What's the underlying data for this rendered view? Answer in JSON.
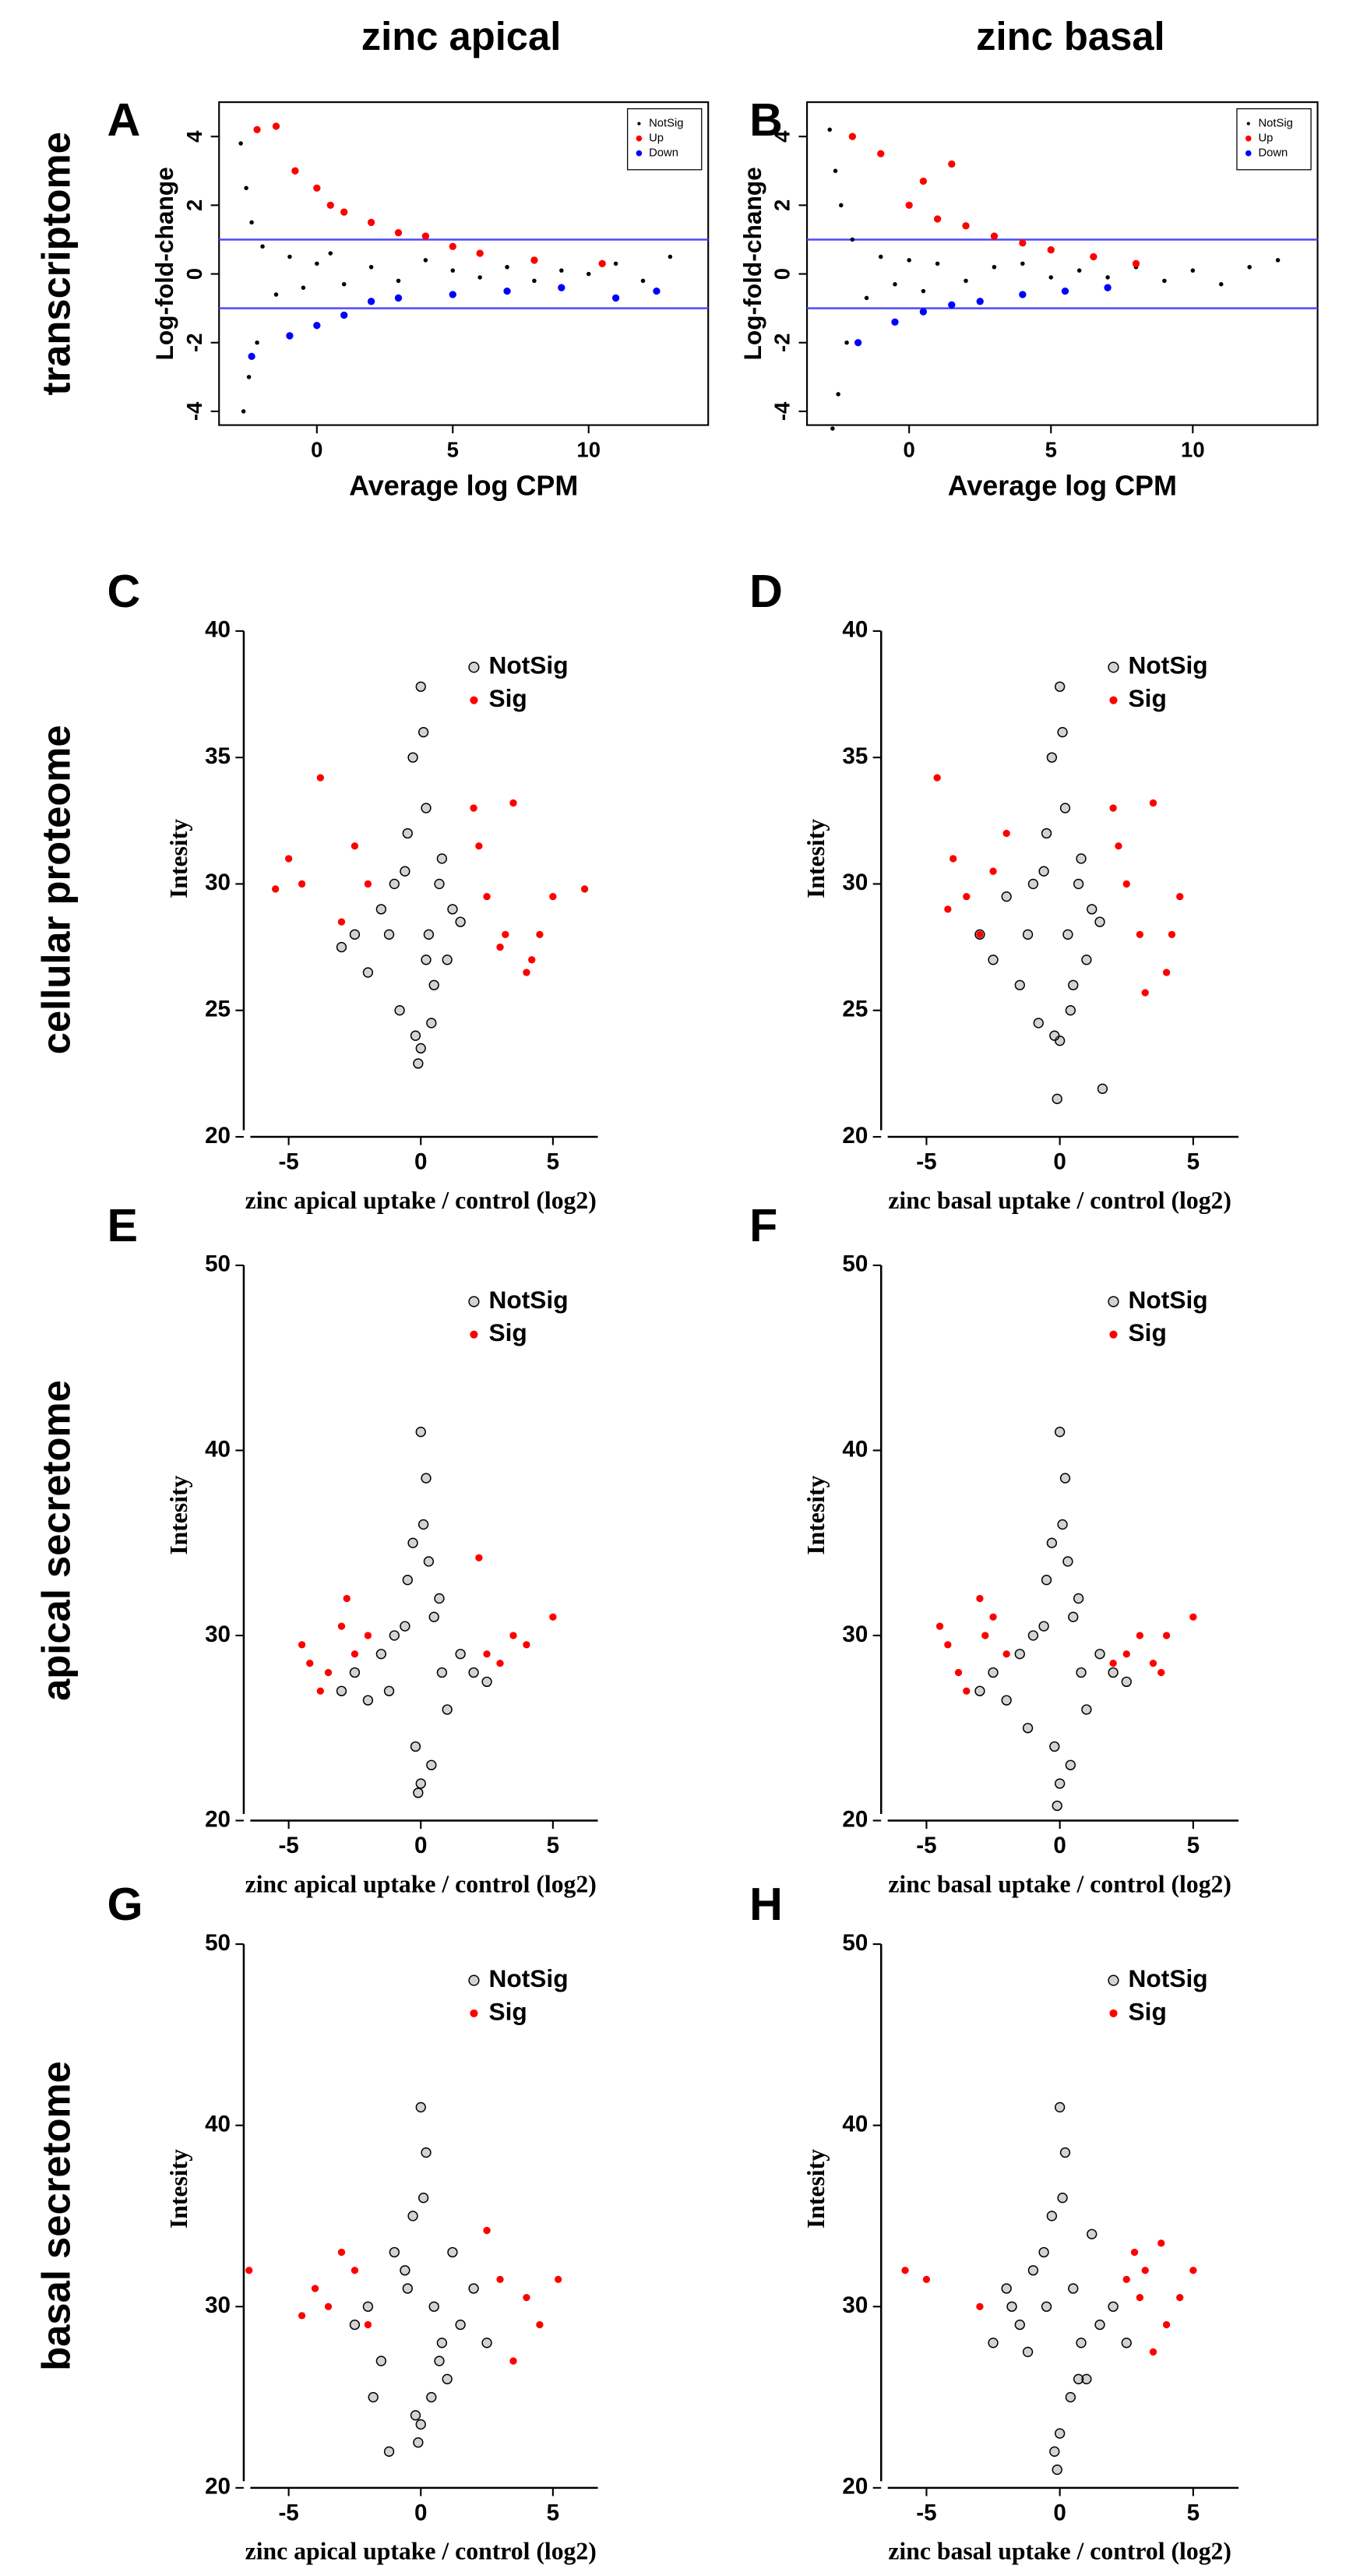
{
  "column_titles": [
    "zinc apical",
    "zinc basal"
  ],
  "row_labels": [
    "transcriptome",
    "cellular proteome",
    "apical secretome",
    "basal secretome"
  ],
  "chart_data": [
    {
      "type": "scatter",
      "panel": "A",
      "frame": true,
      "x_label": "Average log CPM",
      "y_label": "Log-fold-change",
      "xlim": [
        -3.6,
        14.4
      ],
      "ylim": [
        -4.4,
        5
      ],
      "xticks": [
        0,
        5,
        10
      ],
      "yticks": [
        -4,
        -2,
        0,
        2,
        4
      ],
      "hlines": [
        1,
        -1
      ],
      "hline_color": "#4a4aff",
      "legend": "upper right",
      "series": [
        {
          "name": "NotSig",
          "color": "#000000",
          "marker": "dot",
          "x": [
            -2.8,
            -2.7,
            -2.6,
            -2.5,
            -2.4,
            -2.2,
            -2,
            -1.5,
            -1,
            -0.5,
            0,
            0.5,
            1,
            2,
            3,
            4,
            5,
            6,
            7,
            8,
            9,
            10,
            11,
            12,
            13
          ],
          "values": [
            3.8,
            -4,
            2.5,
            -3,
            1.5,
            -2,
            0.8,
            -0.6,
            0.5,
            -0.4,
            0.3,
            0.6,
            -0.3,
            0.2,
            -0.2,
            0.4,
            0.1,
            -0.1,
            0.2,
            -0.2,
            0.1,
            0,
            0.3,
            -0.2,
            0.5
          ]
        },
        {
          "name": "Up",
          "color": "#ff0000",
          "marker": "filled",
          "x": [
            -2.2,
            -1.5,
            -0.8,
            0,
            0.5,
            1,
            2,
            3,
            4,
            5,
            6,
            8,
            10.5
          ],
          "values": [
            4.2,
            4.3,
            3,
            2.5,
            2,
            1.8,
            1.5,
            1.2,
            1.1,
            0.8,
            0.6,
            0.4,
            0.3
          ]
        },
        {
          "name": "Down",
          "color": "#0000ff",
          "marker": "filled",
          "x": [
            -2.4,
            -1,
            0,
            1,
            2,
            3,
            5,
            7,
            9,
            11,
            12.5
          ],
          "values": [
            -2.4,
            -1.8,
            -1.5,
            -1.2,
            -0.8,
            -0.7,
            -0.6,
            -0.5,
            -0.4,
            -0.7,
            -0.5
          ]
        }
      ]
    },
    {
      "type": "scatter",
      "panel": "B",
      "frame": true,
      "x_label": "Average log CPM",
      "y_label": "Log-fold-change",
      "xlim": [
        -3.6,
        14.4
      ],
      "ylim": [
        -4.4,
        5
      ],
      "xticks": [
        0,
        5,
        10
      ],
      "yticks": [
        -4,
        -2,
        0,
        2,
        4
      ],
      "hlines": [
        1,
        -1
      ],
      "hline_color": "#4a4aff",
      "legend": "upper right",
      "series": [
        {
          "name": "NotSig",
          "color": "#000000",
          "marker": "dot",
          "x": [
            -2.8,
            -2.7,
            -2.6,
            -2.5,
            -2.4,
            -2.2,
            -2,
            -1.5,
            -1,
            -0.5,
            0,
            0.5,
            1,
            2,
            3,
            4,
            5,
            6,
            7,
            8,
            9,
            10,
            11,
            12,
            13
          ],
          "values": [
            4.2,
            -4.5,
            3,
            -3.5,
            2,
            -2,
            1,
            -0.7,
            0.5,
            -0.3,
            0.4,
            -0.5,
            0.3,
            -0.2,
            0.2,
            0.3,
            -0.1,
            0.1,
            -0.1,
            0.2,
            -0.2,
            0.1,
            -0.3,
            0.2,
            0.4
          ]
        },
        {
          "name": "Up",
          "color": "#ff0000",
          "marker": "filled",
          "x": [
            -2,
            -1,
            0,
            0.5,
            1,
            1.5,
            2,
            3,
            4,
            5,
            6.5,
            8
          ],
          "values": [
            4,
            3.5,
            2,
            2.7,
            1.6,
            3.2,
            1.4,
            1.1,
            0.9,
            0.7,
            0.5,
            0.3
          ]
        },
        {
          "name": "Down",
          "color": "#0000ff",
          "marker": "filled",
          "x": [
            -1.8,
            -0.5,
            0.5,
            1.5,
            2.5,
            4,
            5.5,
            7
          ],
          "values": [
            -2,
            -1.4,
            -1.1,
            -0.9,
            -0.8,
            -0.6,
            -0.5,
            -0.4
          ]
        }
      ]
    },
    {
      "type": "scatter",
      "panel": "C",
      "frame": false,
      "x_label": "zinc apical uptake / control (log2)",
      "y_label": "Intesity",
      "xlim": [
        -6.7,
        6.7
      ],
      "ylim": [
        20,
        40
      ],
      "xticks": [
        -5,
        0,
        5
      ],
      "yticks": [
        20,
        25,
        30,
        35,
        40
      ],
      "legend": "upper center",
      "series": [
        {
          "name": "NotSig",
          "color": "#808080",
          "marker": "open",
          "x": [
            -3,
            -2.5,
            -2,
            -1.5,
            -1,
            -0.8,
            -0.5,
            -0.3,
            0,
            0,
            0.2,
            0.3,
            0.5,
            0.8,
            1,
            1.2,
            1.5,
            -0.2,
            0.1,
            -0.6,
            0.4,
            -1.2,
            0.7,
            -0.1,
            0.2
          ],
          "values": [
            27.5,
            28,
            26.5,
            29,
            30,
            25,
            32,
            35,
            37.8,
            23.5,
            33,
            28,
            26,
            31,
            27,
            29,
            28.5,
            24,
            36,
            30.5,
            24.5,
            28,
            30,
            22.9,
            27
          ]
        },
        {
          "name": "Sig",
          "color": "#ff0000",
          "marker": "filled",
          "x": [
            -5.5,
            -5,
            -4.5,
            -3.8,
            -3,
            -2.5,
            -2,
            2,
            2.5,
            3,
            3.5,
            4,
            4.5,
            5,
            6.2,
            2.2,
            3.2,
            4.2
          ],
          "values": [
            29.8,
            31,
            30,
            34.2,
            28.5,
            31.5,
            30,
            33,
            29.5,
            27.5,
            33.2,
            26.5,
            28,
            29.5,
            29.8,
            31.5,
            28,
            27
          ]
        }
      ]
    },
    {
      "type": "scatter",
      "panel": "D",
      "frame": false,
      "x_label": "zinc basal uptake / control (log2)",
      "y_label": "Intesity",
      "xlim": [
        -6.7,
        6.7
      ],
      "ylim": [
        20,
        40
      ],
      "xticks": [
        -5,
        0,
        5
      ],
      "yticks": [
        20,
        25,
        30,
        35,
        40
      ],
      "legend": "upper center",
      "series": [
        {
          "name": "NotSig",
          "color": "#808080",
          "marker": "open",
          "x": [
            -3,
            -2.5,
            -2,
            -1.5,
            -1,
            -0.8,
            -0.5,
            -0.3,
            0,
            0,
            0.2,
            0.3,
            0.5,
            0.8,
            1,
            1.2,
            1.5,
            -0.2,
            0.1,
            -0.6,
            0.4,
            -1.2,
            0.7,
            -0.1,
            1.6
          ],
          "values": [
            28,
            27,
            29.5,
            26,
            30,
            24.5,
            32,
            35,
            37.8,
            23.8,
            33,
            28,
            26,
            31,
            27,
            29,
            28.5,
            24,
            36,
            30.5,
            25,
            28,
            30,
            21.5,
            21.9
          ]
        },
        {
          "name": "Sig",
          "color": "#ff0000",
          "marker": "filled",
          "x": [
            -4.6,
            -4,
            -3.5,
            -3,
            -2.5,
            -2,
            2,
            2.5,
            3,
            3.5,
            4,
            4.5,
            2.2,
            3.2,
            4.2,
            -4.2
          ],
          "values": [
            34.2,
            31,
            29.5,
            28,
            30.5,
            32,
            33,
            30,
            28,
            33.2,
            26.5,
            29.5,
            31.5,
            25.7,
            28,
            29
          ]
        }
      ]
    },
    {
      "type": "scatter",
      "panel": "E",
      "frame": false,
      "x_label": "zinc apical uptake / control (log2)",
      "y_label": "Intesity",
      "xlim": [
        -6.7,
        6.7
      ],
      "ylim": [
        20,
        50
      ],
      "xticks": [
        -5,
        0,
        5
      ],
      "yticks": [
        20,
        30,
        40,
        50
      ],
      "legend": "upper center",
      "series": [
        {
          "name": "NotSig",
          "color": "#808080",
          "marker": "open",
          "x": [
            -3,
            -2.5,
            -2,
            -1.5,
            -1,
            -0.5,
            -0.3,
            0,
            0,
            0.2,
            0.5,
            0.8,
            1,
            1.5,
            2,
            2.5,
            -0.2,
            0.1,
            -0.6,
            0.4,
            -1.2,
            0.7,
            -0.1,
            0.3
          ],
          "values": [
            27,
            28,
            26.5,
            29,
            30,
            33,
            35,
            41,
            22,
            38.5,
            31,
            28,
            26,
            29,
            28,
            27.5,
            24,
            36,
            30.5,
            23,
            27,
            32,
            21.5,
            34
          ]
        },
        {
          "name": "Sig",
          "color": "#ff0000",
          "marker": "filled",
          "x": [
            -4.5,
            -4.2,
            -3.8,
            -3.5,
            -3,
            -2.8,
            -2.5,
            -2,
            2.2,
            2.5,
            3,
            3.5,
            4,
            5
          ],
          "values": [
            29.5,
            28.5,
            27,
            28,
            30.5,
            32,
            29,
            30,
            34.2,
            29,
            28.5,
            30,
            29.5,
            31
          ]
        }
      ]
    },
    {
      "type": "scatter",
      "panel": "F",
      "frame": false,
      "x_label": "zinc basal uptake / control (log2)",
      "y_label": "Intesity",
      "xlim": [
        -6.7,
        6.7
      ],
      "ylim": [
        20,
        50
      ],
      "xticks": [
        -5,
        0,
        5
      ],
      "yticks": [
        20,
        30,
        40,
        50
      ],
      "legend": "upper center",
      "series": [
        {
          "name": "NotSig",
          "color": "#808080",
          "marker": "open",
          "x": [
            -3,
            -2.5,
            -2,
            -1.5,
            -1,
            -0.5,
            -0.3,
            0,
            0,
            0.2,
            0.5,
            0.8,
            1,
            1.5,
            2,
            2.5,
            -0.2,
            0.1,
            -0.6,
            0.4,
            -1.2,
            0.7,
            -0.1,
            0.3
          ],
          "values": [
            27,
            28,
            26.5,
            29,
            30,
            33,
            35,
            41,
            22,
            38.5,
            31,
            28,
            26,
            29,
            28,
            27.5,
            24,
            36,
            30.5,
            23,
            25,
            32,
            20.8,
            34
          ]
        },
        {
          "name": "Sig",
          "color": "#ff0000",
          "marker": "filled",
          "x": [
            -4.5,
            -4.2,
            -3.8,
            -3.5,
            -3,
            -2.8,
            -2.5,
            -2,
            2,
            2.5,
            3,
            3.5,
            3.8,
            4,
            5
          ],
          "values": [
            30.5,
            29.5,
            28,
            27,
            32,
            30,
            31,
            29,
            28.5,
            29,
            30,
            28.5,
            28,
            30,
            31
          ]
        }
      ]
    },
    {
      "type": "scatter",
      "panel": "G",
      "frame": false,
      "x_label": "zinc apical uptake / control (log2)",
      "y_label": "Intesity",
      "xlim": [
        -6.7,
        6.7
      ],
      "ylim": [
        20,
        50
      ],
      "xticks": [
        -5,
        0,
        5
      ],
      "yticks": [
        20,
        30,
        40,
        50
      ],
      "legend": "upper center",
      "series": [
        {
          "name": "NotSig",
          "color": "#808080",
          "marker": "open",
          "x": [
            -2.5,
            -2,
            -1.5,
            -1,
            -0.5,
            -0.3,
            0,
            0,
            0.2,
            0.5,
            0.8,
            1,
            1.5,
            2,
            2.5,
            -0.2,
            0.1,
            -0.6,
            0.4,
            -1.2,
            0.7,
            -0.1,
            -1.8,
            1.2
          ],
          "values": [
            29,
            30,
            27,
            33,
            31,
            35,
            41,
            23.5,
            38.5,
            30,
            28,
            26,
            29,
            31,
            28,
            24,
            36,
            32,
            25,
            22,
            27,
            22.5,
            25,
            33
          ]
        },
        {
          "name": "Sig",
          "color": "#ff0000",
          "marker": "filled",
          "x": [
            -6.5,
            -4.5,
            -4,
            -3.5,
            -3,
            -2.5,
            -2,
            2.5,
            3,
            3.5,
            4,
            4.5,
            5.2
          ],
          "values": [
            32,
            29.5,
            31,
            30,
            33,
            32,
            29,
            34.2,
            31.5,
            27,
            30.5,
            29,
            31.5
          ]
        }
      ]
    },
    {
      "type": "scatter",
      "panel": "H",
      "frame": false,
      "x_label": "zinc basal uptake / control (log2)",
      "y_label": "Intesity",
      "xlim": [
        -6.7,
        6.7
      ],
      "ylim": [
        20,
        50
      ],
      "xticks": [
        -5,
        0,
        5
      ],
      "yticks": [
        20,
        30,
        40,
        50
      ],
      "legend": "upper center",
      "series": [
        {
          "name": "NotSig",
          "color": "#808080",
          "marker": "open",
          "x": [
            -2.5,
            -2,
            -1.5,
            -1,
            -0.5,
            -0.3,
            0,
            0,
            0.2,
            0.5,
            0.8,
            1,
            1.5,
            2,
            2.5,
            -0.2,
            0.1,
            -0.6,
            0.4,
            -1.2,
            0.7,
            -0.1,
            -1.8,
            1.2
          ],
          "values": [
            28,
            31,
            29,
            32,
            30,
            35,
            41,
            23,
            38.5,
            31,
            28,
            26,
            29,
            30,
            28,
            22,
            36,
            33,
            25,
            27.5,
            26,
            21,
            30,
            34
          ]
        },
        {
          "name": "Sig",
          "color": "#ff0000",
          "marker": "filled",
          "x": [
            -5.8,
            -5,
            -3,
            2.5,
            2.8,
            3,
            3.2,
            3.5,
            3.8,
            4,
            4.5,
            5
          ],
          "values": [
            32,
            31.5,
            30,
            31.5,
            33,
            30.5,
            32,
            27.5,
            33.5,
            29,
            30.5,
            32
          ]
        }
      ]
    }
  ]
}
